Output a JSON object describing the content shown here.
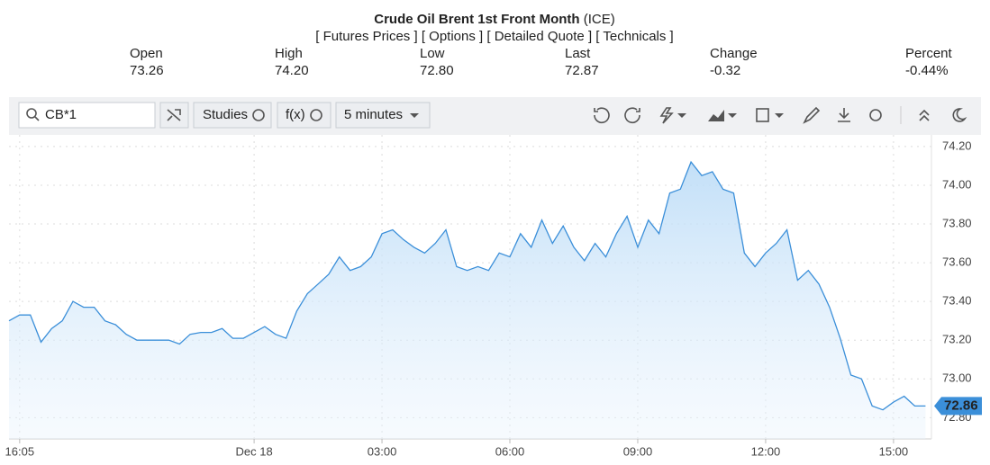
{
  "header": {
    "title": "Crude Oil Brent 1st Front Month",
    "exchange": "(ICE)",
    "links": [
      "[ Futures Prices ]",
      "[ Options ]",
      "[ Detailed Quote ]",
      "[ Technicals ]"
    ],
    "quote": [
      {
        "label": "Open",
        "value": "73.26"
      },
      {
        "label": "High",
        "value": "74.20"
      },
      {
        "label": "Low",
        "value": "72.80"
      },
      {
        "label": "Last",
        "value": "72.87"
      },
      {
        "label": "Change",
        "value": "-0.32"
      },
      {
        "label": "Percent",
        "value": "-0.44%"
      }
    ]
  },
  "toolbar": {
    "symbol": "CB*1",
    "studies": "Studies",
    "fx": "f(x)",
    "interval": "5 minutes"
  },
  "chart_data": {
    "type": "area",
    "color": "#3b8fd9",
    "grid": true,
    "categories": [
      null,
      "16:05",
      null,
      null,
      null,
      null,
      null,
      null,
      null,
      null,
      null,
      null,
      null,
      null,
      null,
      null,
      null,
      null,
      null,
      null,
      null,
      null,
      null,
      "Dec 18",
      null,
      null,
      null,
      null,
      null,
      null,
      null,
      null,
      null,
      null,
      null,
      "03:00",
      null,
      null,
      null,
      null,
      null,
      null,
      null,
      null,
      null,
      null,
      null,
      "06:00",
      null,
      null,
      null,
      null,
      null,
      null,
      null,
      null,
      null,
      null,
      null,
      "09:00",
      null,
      null,
      null,
      null,
      null,
      null,
      null,
      null,
      null,
      null,
      null,
      "12:00",
      null,
      null,
      null,
      null,
      null,
      null,
      null,
      null,
      null,
      null,
      null,
      "15:00",
      null,
      null,
      null
    ],
    "values": [
      73.3,
      73.33,
      73.33,
      73.19,
      73.26,
      73.3,
      73.4,
      73.37,
      73.37,
      73.3,
      73.28,
      73.23,
      73.2,
      73.2,
      73.2,
      73.2,
      73.18,
      73.23,
      73.24,
      73.24,
      73.26,
      73.21,
      73.21,
      73.24,
      73.27,
      73.23,
      73.21,
      73.35,
      73.44,
      73.49,
      73.54,
      73.63,
      73.56,
      73.58,
      73.63,
      73.75,
      73.77,
      73.72,
      73.68,
      73.65,
      73.7,
      73.77,
      73.58,
      73.56,
      73.58,
      73.56,
      73.65,
      73.63,
      73.75,
      73.68,
      73.82,
      73.7,
      73.79,
      73.68,
      73.61,
      73.7,
      73.63,
      73.75,
      73.84,
      73.68,
      73.82,
      73.75,
      73.96,
      73.98,
      74.12,
      74.05,
      74.07,
      73.98,
      73.96,
      73.65,
      73.58,
      73.65,
      73.7,
      73.77,
      73.51,
      73.56,
      73.49,
      73.37,
      73.21,
      73.02,
      73.0,
      72.86,
      72.84,
      72.88,
      72.91,
      72.86,
      72.86
    ],
    "ylim": [
      72.69,
      74.26
    ],
    "yticks": [
      {
        "value": 72.8,
        "label": "72.80"
      },
      {
        "value": 73,
        "label": "73.00"
      },
      {
        "value": 73.2,
        "label": "73.20"
      },
      {
        "value": 73.4,
        "label": "73.40"
      },
      {
        "value": 73.6,
        "label": "73.60"
      },
      {
        "value": 73.8,
        "label": "73.80"
      },
      {
        "value": 74,
        "label": "74.00"
      },
      {
        "value": 74.2,
        "label": "74.20"
      }
    ]
  }
}
